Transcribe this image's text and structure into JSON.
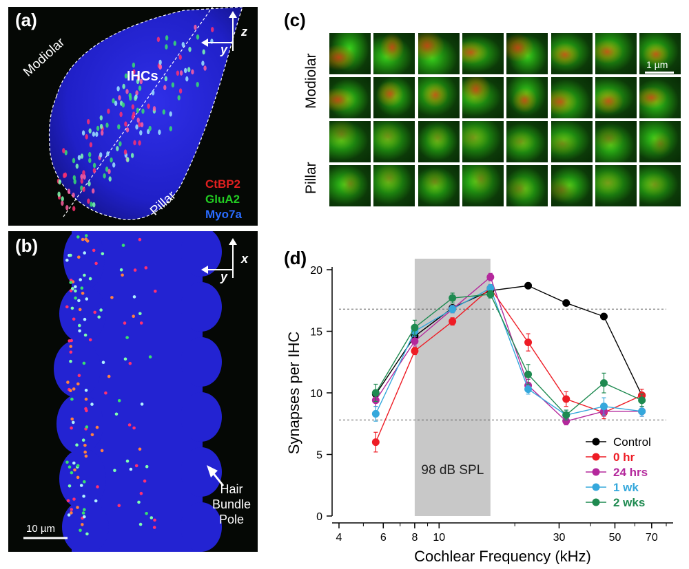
{
  "panels": {
    "a": {
      "label": "(a)",
      "axis_z": "z",
      "axis_y": "y",
      "region_modiolar": "Modiolar",
      "region_ihcs": "IHCs",
      "region_pillar": "Pillar",
      "legend": [
        {
          "text": "CtBP2",
          "color": "#e02020"
        },
        {
          "text": "GluA2",
          "color": "#22cc22"
        },
        {
          "text": "Myo7a",
          "color": "#2a6cff"
        }
      ]
    },
    "b": {
      "label": "(b)",
      "axis_x": "x",
      "axis_y": "y",
      "scale_bar": "10 µm",
      "pointer_line1": "Hair",
      "pointer_line2": "Bundle",
      "pointer_line3": "Pole"
    },
    "c": {
      "label": "(c)",
      "row_label_top": "Modiolar",
      "row_label_bottom": "Pillar",
      "scale_bar": "1 µm",
      "rows": 4,
      "cols": 8
    },
    "d": {
      "label": "(d)"
    }
  },
  "chart_data": {
    "type": "line",
    "xlabel": "Cochlear Frequency (kHz)",
    "ylabel": "Synapses per IHC",
    "x_scale": "log",
    "xlim": [
      4,
      80
    ],
    "ylim": [
      0,
      20
    ],
    "x_ticks": [
      4,
      6,
      8,
      10,
      30,
      50,
      70
    ],
    "y_ticks": [
      0,
      5,
      10,
      15,
      20
    ],
    "reference_lines": [
      16.8,
      7.8
    ],
    "shaded_band": {
      "from": 8,
      "to": 16,
      "label": "98 dB SPL"
    },
    "legend_position": "bottom-right",
    "series": [
      {
        "name": "Control",
        "color": "#000000",
        "x": [
          5.6,
          8,
          11.3,
          16,
          22.6,
          32,
          45.2,
          64
        ],
        "y": [
          9.9,
          14.6,
          16.9,
          18.3,
          18.7,
          17.3,
          16.2,
          9.8
        ],
        "err": [
          0,
          0,
          0,
          0,
          0,
          0,
          0,
          0
        ]
      },
      {
        "name": "0 hr",
        "color": "#ee1c25",
        "x": [
          5.6,
          8,
          11.3,
          16,
          22.6,
          32,
          45.2,
          64
        ],
        "y": [
          6.0,
          13.4,
          15.8,
          18.5,
          14.1,
          9.5,
          8.4,
          9.8
        ],
        "err": [
          0.8,
          0.3,
          0.3,
          0.3,
          0.7,
          0.6,
          0.5,
          0.5
        ]
      },
      {
        "name": "24 hrs",
        "color": "#b4289c",
        "x": [
          5.6,
          8,
          11.3,
          16,
          22.6,
          32,
          45.2,
          64
        ],
        "y": [
          9.4,
          14.2,
          16.8,
          19.4,
          10.6,
          7.7,
          8.5,
          8.5
        ],
        "err": [
          0.5,
          0.4,
          0.3,
          0.3,
          0.5,
          0.3,
          0.4,
          0.4
        ]
      },
      {
        "name": "1 wk",
        "color": "#35a8dc",
        "x": [
          5.6,
          8,
          11.3,
          16,
          22.6,
          32,
          45.2,
          64
        ],
        "y": [
          8.3,
          15.0,
          16.8,
          18.5,
          10.3,
          8.2,
          8.9,
          8.5
        ],
        "err": [
          0.6,
          0.4,
          0.3,
          0.3,
          0.4,
          0.4,
          0.7,
          0.4
        ]
      },
      {
        "name": "2 wks",
        "color": "#1e8a50",
        "x": [
          5.6,
          8,
          11.3,
          16,
          22.6,
          32,
          45.2,
          64
        ],
        "y": [
          10.0,
          15.3,
          17.7,
          18.0,
          11.5,
          8.2,
          10.8,
          9.4
        ],
        "err": [
          0.7,
          0.6,
          0.4,
          0.3,
          0.8,
          0.4,
          0.8,
          0.5
        ]
      }
    ]
  }
}
